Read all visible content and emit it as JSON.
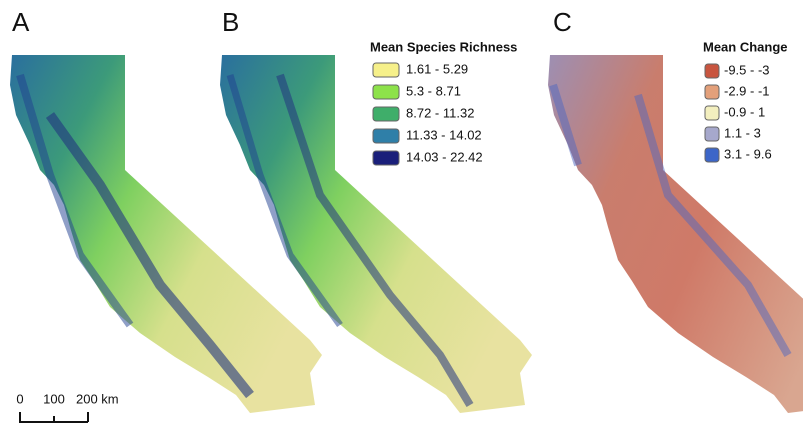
{
  "panels": [
    {
      "label": "A"
    },
    {
      "label": "B"
    },
    {
      "label": "C"
    }
  ],
  "legend_richness": {
    "title": "Mean Species Richness",
    "items": [
      {
        "label": "1.61 - 5.29",
        "color": "#f6f08a"
      },
      {
        "label": "5.3 - 8.71",
        "color": "#8de24a"
      },
      {
        "label": "8.72 - 11.32",
        "color": "#3fae6a"
      },
      {
        "label": "11.33 - 14.02",
        "color": "#2f7fa8"
      },
      {
        "label": "14.03 - 22.42",
        "color": "#1a1f7a"
      }
    ]
  },
  "legend_change": {
    "title": "Mean Change",
    "items": [
      {
        "label": "-9.5 - -3",
        "color": "#c8553f"
      },
      {
        "label": "-2.9 - -1",
        "color": "#e3a07a"
      },
      {
        "label": "-0.9 - 1",
        "color": "#f3efbf"
      },
      {
        "label": "1.1 - 3",
        "color": "#a6a8cc"
      },
      {
        "label": "3.1 - 9.6",
        "color": "#3c66c8"
      }
    ]
  },
  "scale_bar": {
    "labels": [
      "0",
      "100",
      "200 km"
    ]
  }
}
